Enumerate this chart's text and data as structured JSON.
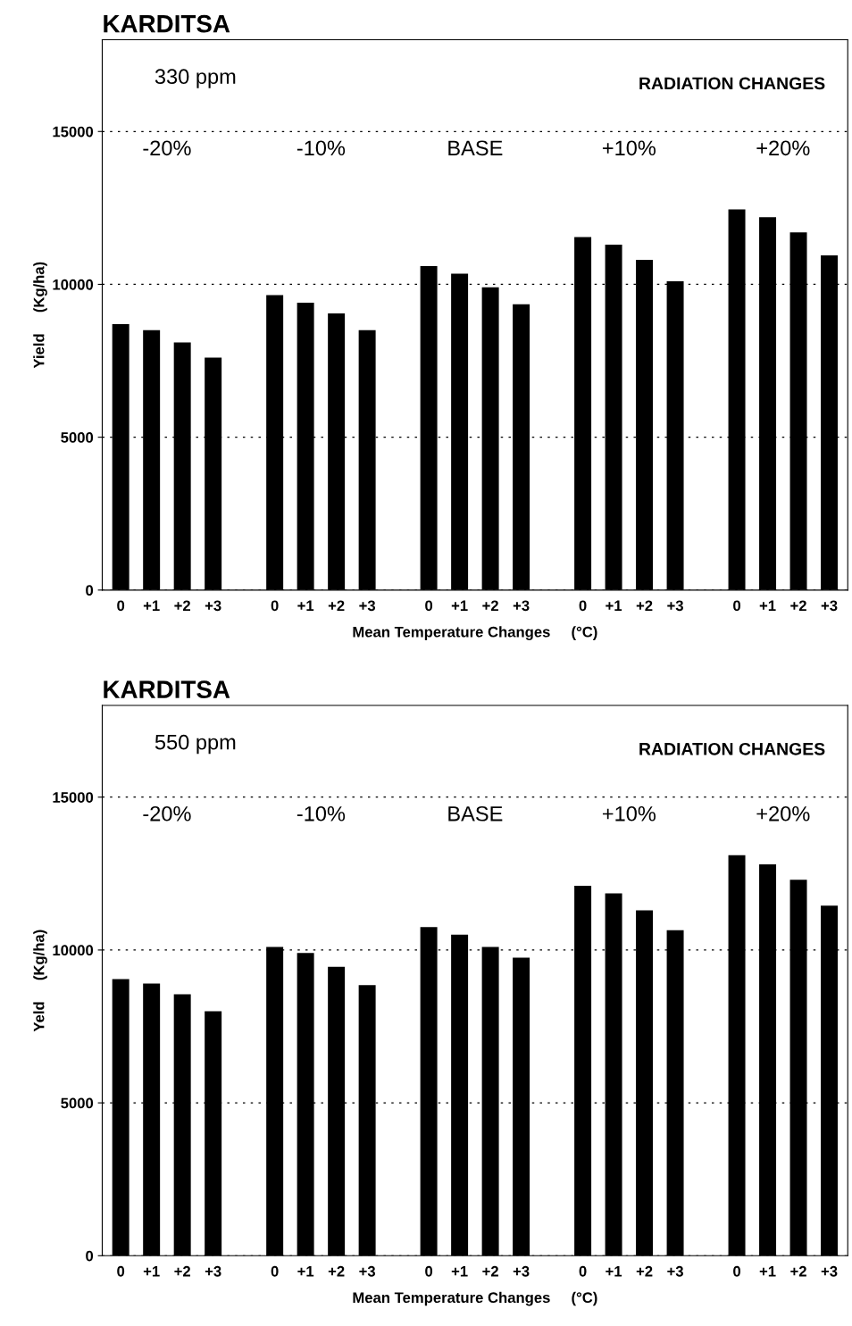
{
  "chart_data": [
    {
      "type": "bar",
      "title": "KARDITSA",
      "xlabel": "Mean Temperature Changes     (°C)",
      "ylabel": "Yield     (Kg/ha)",
      "categories": [
        "0",
        "+1",
        "+2",
        "+3",
        null,
        "0",
        "+1",
        "+2",
        "+3",
        null,
        "0",
        "+1",
        "+2",
        "+3",
        null,
        "0",
        "+1",
        "+2",
        "+3",
        null,
        "0",
        "+1",
        "+2",
        "+3"
      ],
      "values": [
        8700,
        8500,
        8100,
        7600,
        null,
        9650,
        9400,
        9050,
        8500,
        null,
        10600,
        10350,
        9900,
        9350,
        null,
        11550,
        11300,
        10800,
        10100,
        null,
        12450,
        12200,
        11700,
        10950
      ],
      "color": "#000000",
      "ylim": [
        0,
        18000
      ],
      "yticks": [
        0,
        5000,
        10000,
        15000
      ],
      "grid": "y",
      "annotations": [
        "330 ppm",
        "RADIATION CHANGES",
        "-20%",
        "-10%",
        "BASE",
        "+10%",
        "+20%"
      ]
    },
    {
      "type": "bar",
      "title": "KARDITSA",
      "xlabel": "Mean Temperature Changes     (°C)",
      "ylabel": "Yeld     (Kg/ha)",
      "categories": [
        "0",
        "+1",
        "+2",
        "+3",
        null,
        "0",
        "+1",
        "+2",
        "+3",
        null,
        "0",
        "+1",
        "+2",
        "+3",
        null,
        "0",
        "+1",
        "+2",
        "+3",
        null,
        "0",
        "+1",
        "+2",
        "+3"
      ],
      "values": [
        9050,
        8900,
        8550,
        8000,
        null,
        10100,
        9900,
        9450,
        8850,
        null,
        10750,
        10500,
        10100,
        9750,
        null,
        12100,
        11850,
        11300,
        10650,
        null,
        13100,
        12800,
        12300,
        11450
      ],
      "color": "#000000",
      "ylim": [
        0,
        18000
      ],
      "yticks": [
        0,
        5000,
        10000,
        15000
      ],
      "grid": "y",
      "annotations": [
        "550 ppm",
        "RADIATION CHANGES",
        "-20%",
        "-10%",
        "BASE",
        "+10%",
        "+20%"
      ]
    }
  ]
}
